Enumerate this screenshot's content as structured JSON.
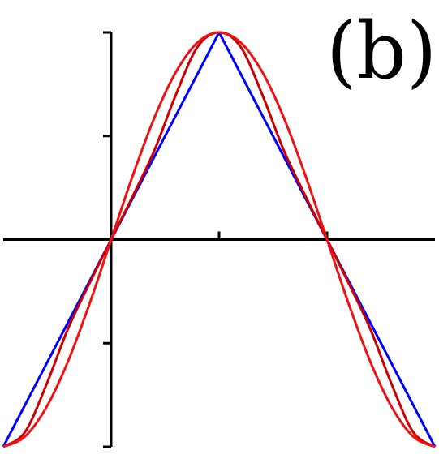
{
  "panel_label": "(b)",
  "chart_data": {
    "type": "line",
    "title": "",
    "xlabel": "",
    "ylabel": "",
    "xlim": [
      -0.5,
      1.5
    ],
    "ylim": [
      -1,
      1
    ],
    "x_ticks": [
      0,
      0.5,
      1
    ],
    "y_ticks": [
      -1,
      -0.5,
      0.5,
      1
    ],
    "tick_labels_shown": false,
    "grid": false,
    "legend": "none",
    "series": [
      {
        "color": "#0000ff",
        "shape": "triangle wave",
        "x": [
          -0.5,
          0,
          0.5,
          1,
          1.5
        ],
        "y": [
          -1,
          0,
          1,
          0,
          -1
        ]
      },
      {
        "color": "#cc0000",
        "shape": "partially smoothed triangle wave",
        "x": [
          -0.5,
          -0.4,
          -0.3,
          -0.2,
          -0.1,
          0,
          0.1,
          0.2,
          0.3,
          0.4,
          0.5,
          0.6,
          0.7,
          0.8,
          0.9,
          1,
          1.1,
          1.2,
          1.3,
          1.4,
          1.5
        ],
        "y": [
          -1,
          -0.93,
          -0.7,
          -0.43,
          -0.21,
          0,
          0.21,
          0.43,
          0.7,
          0.93,
          1,
          0.93,
          0.7,
          0.43,
          0.21,
          0,
          -0.21,
          -0.43,
          -0.7,
          -0.93,
          -1
        ]
      },
      {
        "color": "#ee1111",
        "shape": "sine wave",
        "x": [
          -0.5,
          -0.4,
          -0.3,
          -0.2,
          -0.1,
          0,
          0.1,
          0.2,
          0.3,
          0.4,
          0.5,
          0.6,
          0.7,
          0.8,
          0.9,
          1,
          1.1,
          1.2,
          1.3,
          1.4,
          1.5
        ],
        "y": [
          -1,
          -0.951,
          -0.809,
          -0.588,
          -0.309,
          0,
          0.309,
          0.588,
          0.809,
          0.951,
          1,
          0.951,
          0.809,
          0.588,
          0.309,
          0,
          -0.309,
          -0.588,
          -0.809,
          -0.951,
          -1
        ]
      }
    ]
  }
}
